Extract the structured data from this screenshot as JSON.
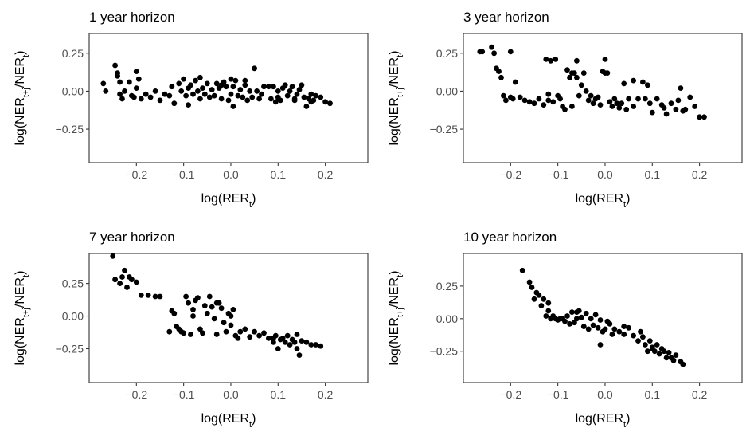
{
  "figure": {
    "background": "#ffffff",
    "point_color": "#000000",
    "frame_color": "#333333",
    "tick_label_color": "#4d4d4d"
  },
  "chart_data": [
    {
      "type": "scatter",
      "title": "1 year horizon",
      "xlabel_base": "log(RER",
      "xlabel_sub": "t",
      "ylabel_num": "NER",
      "ylabel_num_sub": "t+j",
      "ylabel_den": "NER",
      "ylabel_den_sub": "t",
      "xlim": [
        -0.3,
        0.29
      ],
      "ylim": [
        -0.47,
        0.38
      ],
      "xticks": [
        -0.2,
        -0.1,
        0.0,
        0.1,
        0.2
      ],
      "xtick_labels": [
        "−0.2",
        "−0.1",
        "0.0",
        "0.1",
        "0.2"
      ],
      "yticks": [
        0.25,
        0.0,
        -0.25
      ],
      "ytick_labels": [
        "0.25",
        "0.00",
        "−0.25"
      ],
      "x": [
        -0.27,
        -0.265,
        -0.245,
        -0.24,
        -0.24,
        -0.235,
        -0.23,
        -0.225,
        -0.215,
        -0.21,
        -0.205,
        -0.2,
        -0.195,
        -0.19,
        -0.18,
        -0.17,
        -0.16,
        -0.15,
        -0.14,
        -0.13,
        -0.125,
        -0.12,
        -0.11,
        -0.105,
        -0.1,
        -0.095,
        -0.09,
        -0.085,
        -0.08,
        -0.075,
        -0.07,
        -0.065,
        -0.065,
        -0.06,
        -0.055,
        -0.05,
        -0.045,
        -0.04,
        -0.035,
        -0.03,
        -0.025,
        -0.02,
        -0.015,
        -0.01,
        -0.005,
        0.0,
        0.0,
        0.005,
        0.01,
        0.015,
        0.02,
        0.025,
        0.03,
        0.035,
        0.04,
        0.045,
        0.05,
        0.055,
        0.06,
        0.065,
        0.07,
        0.08,
        0.085,
        0.09,
        0.095,
        0.1,
        0.105,
        0.11,
        0.115,
        0.12,
        0.125,
        0.13,
        0.135,
        0.14,
        0.145,
        0.15,
        0.155,
        0.16,
        0.165,
        0.17,
        0.175,
        0.18,
        0.19,
        0.2,
        0.21,
        -0.235,
        -0.2,
        -0.09,
        -0.02,
        0.005,
        0.03,
        0.1,
        0.135,
        0.17
      ],
      "y": [
        0.05,
        0.0,
        0.17,
        0.12,
        0.1,
        -0.02,
        -0.05,
        0.0,
        0.06,
        -0.03,
        -0.04,
        0.13,
        0.08,
        -0.05,
        -0.02,
        -0.04,
        0.0,
        -0.06,
        -0.02,
        -0.03,
        0.03,
        -0.08,
        0.05,
        0.0,
        0.08,
        -0.03,
        0.02,
        0.04,
        -0.02,
        0.07,
        0.0,
        -0.05,
        0.09,
        0.02,
        -0.02,
        0.05,
        -0.04,
        0.01,
        -0.03,
        0.05,
        0.02,
        -0.05,
        0.06,
        0.03,
        -0.06,
        0.08,
        -0.02,
        0.03,
        0.07,
        -0.03,
        0.01,
        -0.04,
        0.04,
        -0.06,
        0.0,
        -0.04,
        0.15,
        0.0,
        -0.05,
        -0.02,
        0.03,
        0.03,
        -0.05,
        0.03,
        -0.07,
        0.0,
        -0.06,
        0.02,
        0.04,
        -0.03,
        0.0,
        0.03,
        -0.05,
        -0.02,
        0.01,
        0.04,
        -0.04,
        -0.1,
        -0.05,
        -0.02,
        -0.06,
        -0.03,
        -0.04,
        -0.07,
        -0.08,
        0.06,
        0.02,
        -0.09,
        0.04,
        -0.1,
        0.07,
        -0.04,
        -0.06,
        -0.07
      ]
    },
    {
      "type": "scatter",
      "title": "3 year horizon",
      "xlabel_base": "log(RER",
      "xlabel_sub": "t",
      "ylabel_num": "NER",
      "ylabel_num_sub": "t+j",
      "ylabel_den": "NER",
      "ylabel_den_sub": "t",
      "xlim": [
        -0.3,
        0.29
      ],
      "ylim": [
        -0.47,
        0.38
      ],
      "xticks": [
        -0.2,
        -0.1,
        0.0,
        0.1,
        0.2
      ],
      "xtick_labels": [
        "−0.2",
        "−0.1",
        "0.0",
        "0.1",
        "0.2"
      ],
      "yticks": [
        0.25,
        0.0,
        -0.25
      ],
      "ytick_labels": [
        "0.25",
        "0.00",
        "−0.25"
      ],
      "x": [
        -0.265,
        -0.26,
        -0.24,
        -0.235,
        -0.23,
        -0.225,
        -0.22,
        -0.215,
        -0.21,
        -0.2,
        -0.195,
        -0.19,
        -0.18,
        -0.17,
        -0.16,
        -0.15,
        -0.14,
        -0.13,
        -0.125,
        -0.12,
        -0.115,
        -0.11,
        -0.105,
        -0.1,
        -0.095,
        -0.09,
        -0.085,
        -0.08,
        -0.075,
        -0.07,
        -0.065,
        -0.06,
        -0.055,
        -0.05,
        -0.045,
        -0.04,
        -0.035,
        -0.03,
        -0.025,
        -0.02,
        -0.015,
        -0.01,
        -0.005,
        0.0,
        0.005,
        0.01,
        0.015,
        0.02,
        0.025,
        0.03,
        0.035,
        0.04,
        0.045,
        0.05,
        0.06,
        0.07,
        0.08,
        0.085,
        0.09,
        0.095,
        0.1,
        0.11,
        0.12,
        0.125,
        0.13,
        0.14,
        0.15,
        0.155,
        0.16,
        0.165,
        0.17,
        0.18,
        0.19,
        0.2,
        0.21,
        -0.2,
        -0.12,
        -0.06,
        0.0,
        -0.07,
        0.06
      ],
      "y": [
        0.26,
        0.26,
        0.29,
        0.25,
        0.15,
        0.13,
        0.09,
        -0.03,
        -0.06,
        0.26,
        -0.05,
        0.06,
        -0.04,
        -0.06,
        -0.07,
        -0.08,
        -0.05,
        -0.09,
        0.21,
        -0.06,
        0.2,
        -0.07,
        0.21,
        -0.03,
        -0.05,
        -0.1,
        -0.12,
        0.14,
        0.09,
        0.12,
        0.12,
        0.09,
        -0.03,
        0.04,
        0.12,
        0.0,
        -0.06,
        -0.03,
        -0.08,
        -0.05,
        -0.04,
        -0.09,
        0.13,
        0.21,
        0.12,
        -0.07,
        -0.1,
        -0.05,
        -0.08,
        -0.11,
        -0.08,
        0.05,
        -0.12,
        -0.05,
        0.07,
        -0.05,
        0.06,
        -0.05,
        0.04,
        -0.08,
        -0.14,
        -0.05,
        -0.09,
        -0.11,
        -0.15,
        -0.08,
        -0.12,
        -0.06,
        0.02,
        -0.13,
        -0.12,
        -0.04,
        -0.1,
        -0.17,
        -0.17,
        -0.04,
        -0.02,
        0.2,
        0.12,
        -0.1,
        -0.1
      ]
    },
    {
      "type": "scatter",
      "title": "7 year horizon",
      "xlabel_base": "log(RER",
      "xlabel_sub": "t",
      "ylabel_num": "NER",
      "ylabel_num_sub": "t+j",
      "ylabel_den": "NER",
      "ylabel_den_sub": "t",
      "xlim": [
        -0.3,
        0.29
      ],
      "ylim": [
        -0.51,
        0.48
      ],
      "xticks": [
        -0.2,
        -0.1,
        0.0,
        0.1,
        0.2
      ],
      "xtick_labels": [
        "−0.2",
        "−0.1",
        "0.0",
        "0.1",
        "0.2"
      ],
      "yticks": [
        0.25,
        0.0,
        -0.25
      ],
      "ytick_labels": [
        "0.25",
        "0.00",
        "−0.25"
      ],
      "x": [
        -0.25,
        -0.245,
        -0.235,
        -0.23,
        -0.225,
        -0.22,
        -0.215,
        -0.21,
        -0.2,
        -0.19,
        -0.175,
        -0.16,
        -0.15,
        -0.13,
        -0.125,
        -0.12,
        -0.115,
        -0.11,
        -0.105,
        -0.1,
        -0.095,
        -0.09,
        -0.085,
        -0.08,
        -0.075,
        -0.07,
        -0.065,
        -0.06,
        -0.055,
        -0.05,
        -0.045,
        -0.04,
        -0.035,
        -0.03,
        -0.025,
        -0.02,
        -0.015,
        -0.01,
        -0.005,
        0.0,
        0.005,
        0.01,
        0.015,
        0.02,
        0.03,
        0.04,
        0.05,
        0.06,
        0.07,
        0.08,
        0.09,
        0.095,
        0.1,
        0.105,
        0.11,
        0.115,
        0.12,
        0.125,
        0.13,
        0.135,
        0.14,
        0.145,
        0.15,
        0.16,
        0.17,
        0.18,
        0.19,
        -0.08,
        -0.03,
        0.0,
        0.09,
        0.14
      ],
      "y": [
        0.46,
        0.28,
        0.25,
        0.3,
        0.35,
        0.22,
        0.3,
        0.28,
        0.26,
        0.16,
        0.16,
        0.15,
        0.15,
        -0.12,
        0.04,
        0.02,
        -0.08,
        -0.1,
        -0.12,
        -0.13,
        0.15,
        0.1,
        -0.14,
        0.05,
        0.12,
        0.14,
        -0.1,
        -0.13,
        0.08,
        0.02,
        0.15,
        0.07,
        -0.02,
        -0.14,
        0.1,
        0.06,
        -0.05,
        -0.12,
        0.02,
        0.0,
        0.05,
        -0.15,
        -0.17,
        -0.12,
        -0.1,
        -0.16,
        -0.12,
        -0.15,
        -0.13,
        -0.17,
        -0.2,
        -0.15,
        -0.25,
        -0.18,
        -0.17,
        -0.2,
        -0.15,
        -0.22,
        -0.18,
        -0.2,
        -0.25,
        -0.3,
        -0.19,
        -0.2,
        -0.22,
        -0.22,
        -0.23,
        0.0,
        0.1,
        -0.07,
        -0.17,
        -0.14
      ]
    },
    {
      "type": "scatter",
      "title": "10 year horizon",
      "xlabel_base": "log(RER",
      "xlabel_sub": "t",
      "ylabel_num": "NER",
      "ylabel_num_sub": "t+j",
      "ylabel_den": "NER",
      "ylabel_den_sub": "t",
      "xlim": [
        -0.3,
        0.29
      ],
      "ylim": [
        -0.49,
        0.5
      ],
      "xticks": [
        -0.2,
        -0.1,
        0.0,
        0.1,
        0.2
      ],
      "xtick_labels": [
        "−0.2",
        "−0.1",
        "0.0",
        "0.1",
        "0.2"
      ],
      "yticks": [
        0.25,
        0.0,
        -0.25
      ],
      "ytick_labels": [
        "0.25",
        "0.00",
        "−0.25"
      ],
      "x": [
        -0.175,
        -0.16,
        -0.155,
        -0.15,
        -0.145,
        -0.14,
        -0.135,
        -0.13,
        -0.125,
        -0.12,
        -0.115,
        -0.11,
        -0.105,
        -0.1,
        -0.095,
        -0.09,
        -0.085,
        -0.08,
        -0.075,
        -0.07,
        -0.065,
        -0.06,
        -0.055,
        -0.05,
        -0.045,
        -0.04,
        -0.035,
        -0.03,
        -0.025,
        -0.02,
        -0.015,
        -0.01,
        -0.005,
        0.0,
        0.005,
        0.01,
        0.015,
        0.02,
        0.03,
        0.04,
        0.05,
        0.06,
        0.07,
        0.075,
        0.08,
        0.085,
        0.09,
        0.095,
        0.1,
        0.105,
        0.11,
        0.115,
        0.12,
        0.125,
        0.13,
        0.135,
        0.14,
        0.145,
        0.15,
        0.16,
        0.165,
        -0.12,
        -0.06,
        -0.01,
        0.04,
        0.1
      ],
      "y": [
        0.37,
        0.28,
        0.24,
        0.15,
        0.2,
        0.18,
        0.1,
        0.15,
        0.02,
        0.12,
        0.0,
        0.02,
        0.0,
        -0.01,
        0.0,
        0.0,
        -0.02,
        0.02,
        -0.04,
        0.05,
        -0.03,
        0.0,
        0.06,
        0.01,
        -0.06,
        0.04,
        -0.08,
        0.0,
        -0.05,
        0.03,
        -0.07,
        -0.01,
        -0.1,
        -0.08,
        -0.02,
        -0.04,
        -0.12,
        -0.08,
        -0.1,
        -0.12,
        -0.07,
        -0.13,
        -0.17,
        -0.1,
        -0.14,
        -0.2,
        -0.25,
        -0.17,
        -0.22,
        -0.25,
        -0.2,
        -0.27,
        -0.23,
        -0.25,
        -0.3,
        -0.26,
        -0.3,
        -0.32,
        -0.28,
        -0.33,
        -0.35,
        0.06,
        0.05,
        -0.2,
        -0.06,
        -0.23
      ]
    }
  ]
}
